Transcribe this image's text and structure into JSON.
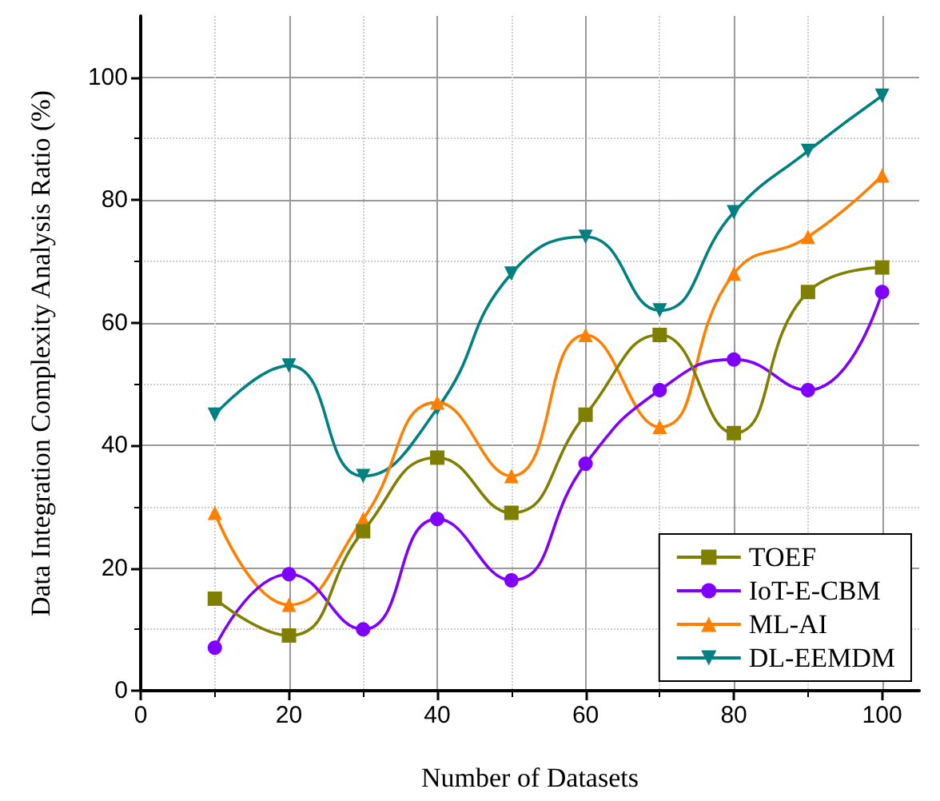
{
  "chart_data": {
    "type": "line",
    "xlabel": "Number of Datasets",
    "ylabel": "Data Integration Complexity Analysis Ratio (%)",
    "x": [
      10,
      20,
      30,
      40,
      50,
      60,
      70,
      80,
      90,
      100
    ],
    "series": [
      {
        "name": "TOEF",
        "color": "#808000",
        "marker": "square",
        "values": [
          15,
          9,
          26,
          38,
          29,
          45,
          58,
          42,
          65,
          69
        ]
      },
      {
        "name": "IoT-E-CBM",
        "color": "#8000ff",
        "marker": "circle",
        "values": [
          7,
          19,
          10,
          28,
          18,
          37,
          49,
          54,
          49,
          65
        ]
      },
      {
        "name": "ML-AI",
        "color": "#ff8000",
        "marker": "triangle",
        "values": [
          29,
          14,
          28,
          47,
          35,
          58,
          43,
          68,
          74,
          84
        ]
      },
      {
        "name": "DL-EEMDM",
        "color": "#008080",
        "marker": "triangle-down",
        "values": [
          45,
          53,
          35,
          46,
          68,
          74,
          62,
          78,
          88,
          97
        ]
      }
    ],
    "xlim": [
      0,
      105
    ],
    "xticks": [
      0,
      20,
      40,
      60,
      80,
      100
    ],
    "ylim": [
      0,
      110
    ],
    "yticks": [
      0,
      20,
      40,
      60,
      80,
      100
    ],
    "grid": true,
    "legend": "bottom right",
    "line_style": "solid"
  }
}
